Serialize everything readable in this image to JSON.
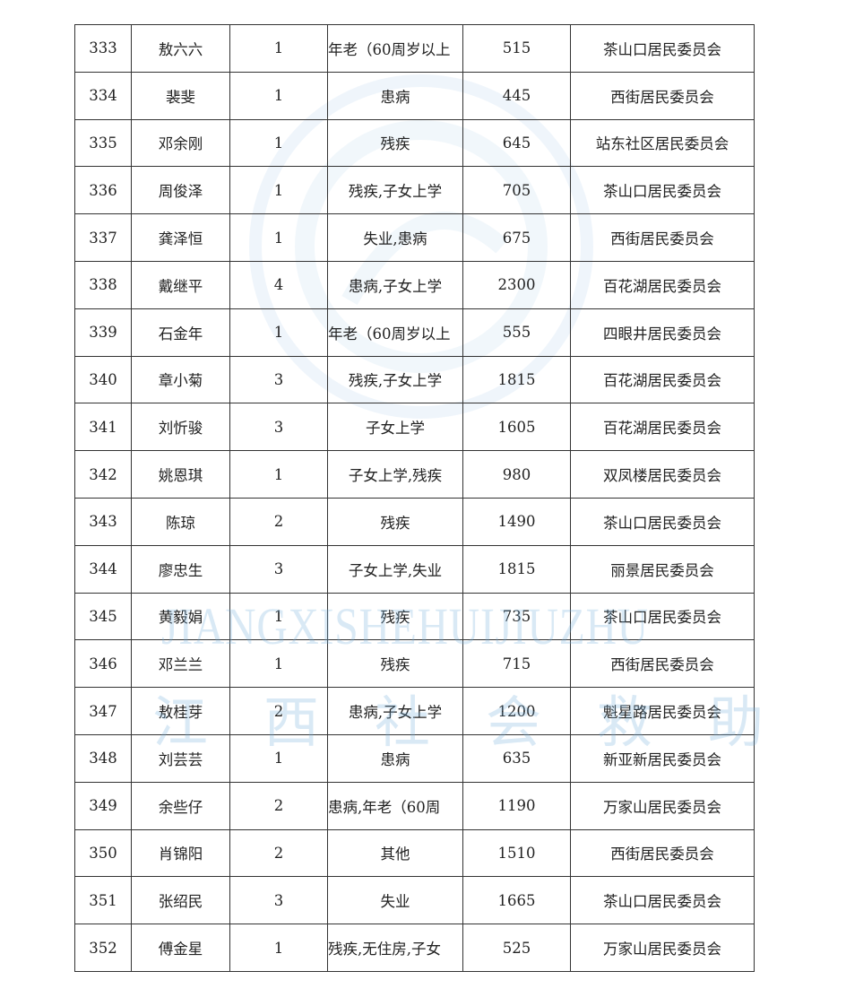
{
  "rows": [
    {
      "no": "333",
      "name": "敖六六",
      "count": "1",
      "reason": "年老（60周岁以上",
      "amount": "515",
      "committee": "茶山口居民委员会"
    },
    {
      "no": "334",
      "name": "裴斐",
      "count": "1",
      "reason": "患病",
      "amount": "445",
      "committee": "西街居民委员会"
    },
    {
      "no": "335",
      "name": "邓余刚",
      "count": "1",
      "reason": "残疾",
      "amount": "645",
      "committee": "站东社区居民委员会"
    },
    {
      "no": "336",
      "name": "周俊泽",
      "count": "1",
      "reason": "残疾,子女上学",
      "amount": "705",
      "committee": "茶山口居民委员会"
    },
    {
      "no": "337",
      "name": "龚泽恒",
      "count": "1",
      "reason": "失业,患病",
      "amount": "675",
      "committee": "西街居民委员会"
    },
    {
      "no": "338",
      "name": "戴继平",
      "count": "4",
      "reason": "患病,子女上学",
      "amount": "2300",
      "committee": "百花湖居民委员会"
    },
    {
      "no": "339",
      "name": "石金年",
      "count": "1",
      "reason": "年老（60周岁以上",
      "amount": "555",
      "committee": "四眼井居民委员会"
    },
    {
      "no": "340",
      "name": "章小菊",
      "count": "3",
      "reason": "残疾,子女上学",
      "amount": "1815",
      "committee": "百花湖居民委员会"
    },
    {
      "no": "341",
      "name": "刘忻骏",
      "count": "3",
      "reason": "子女上学",
      "amount": "1605",
      "committee": "百花湖居民委员会"
    },
    {
      "no": "342",
      "name": "姚恩琪",
      "count": "1",
      "reason": "子女上学,残疾",
      "amount": "980",
      "committee": "双凤楼居民委员会"
    },
    {
      "no": "343",
      "name": "陈琼",
      "count": "2",
      "reason": "残疾",
      "amount": "1490",
      "committee": "茶山口居民委员会"
    },
    {
      "no": "344",
      "name": "廖忠生",
      "count": "3",
      "reason": "子女上学,失业",
      "amount": "1815",
      "committee": "丽景居民委员会"
    },
    {
      "no": "345",
      "name": "黄毅娟",
      "count": "1",
      "reason": "残疾",
      "amount": "735",
      "committee": "茶山口居民委员会"
    },
    {
      "no": "346",
      "name": "邓兰兰",
      "count": "1",
      "reason": "残疾",
      "amount": "715",
      "committee": "西街居民委员会"
    },
    {
      "no": "347",
      "name": "敖桂芽",
      "count": "2",
      "reason": "患病,子女上学",
      "amount": "1200",
      "committee": "魁星路居民委员会"
    },
    {
      "no": "348",
      "name": "刘芸芸",
      "count": "1",
      "reason": "患病",
      "amount": "635",
      "committee": "新亚新居民委员会"
    },
    {
      "no": "349",
      "name": "余些仔",
      "count": "2",
      "reason": "患病,年老（60周",
      "amount": "1190",
      "committee": "万家山居民委员会"
    },
    {
      "no": "350",
      "name": "肖锦阳",
      "count": "2",
      "reason": "其他",
      "amount": "1510",
      "committee": "西街居民委员会"
    },
    {
      "no": "351",
      "name": "张绍民",
      "count": "3",
      "reason": "失业",
      "amount": "1665",
      "committee": "茶山口居民委员会"
    },
    {
      "no": "352",
      "name": "傅金星",
      "count": "1",
      "reason": "残疾,无住房,子女",
      "amount": "525",
      "committee": "万家山居民委员会"
    }
  ],
  "watermark": {
    "latin": "JIANGXISHEHUIJIUZHU",
    "chinese": "江西社会救助",
    "color": "#78afdc"
  }
}
